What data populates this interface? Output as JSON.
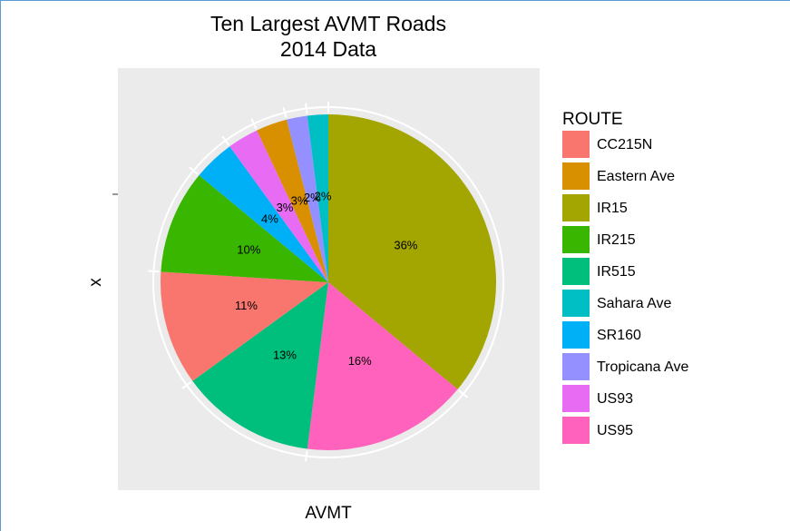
{
  "chart_data": {
    "type": "pie",
    "title": [
      "Ten Largest AVMT Roads",
      "2014 Data"
    ],
    "x_label": "AVMT",
    "y_label": "x",
    "legend_title": "ROUTE",
    "categories": [
      "CC215N",
      "Eastern Ave",
      "IR15",
      "IR215",
      "IR515",
      "Sahara Ave",
      "SR160",
      "Tropicana Ave",
      "US93",
      "US95"
    ],
    "values": [
      11,
      3,
      36,
      10,
      13,
      2,
      4,
      2,
      3,
      16
    ],
    "value_labels": [
      "11%",
      "3%",
      "36%",
      "10%",
      "13%",
      "2%",
      "4%",
      "2%",
      "3%",
      "16%"
    ],
    "colors": [
      "#F8766D",
      "#D89000",
      "#A3A500",
      "#39B600",
      "#00BF7D",
      "#00BFC4",
      "#00B0F6",
      "#9590FF",
      "#E76BF3",
      "#FF62BC"
    ],
    "legend": "right"
  }
}
